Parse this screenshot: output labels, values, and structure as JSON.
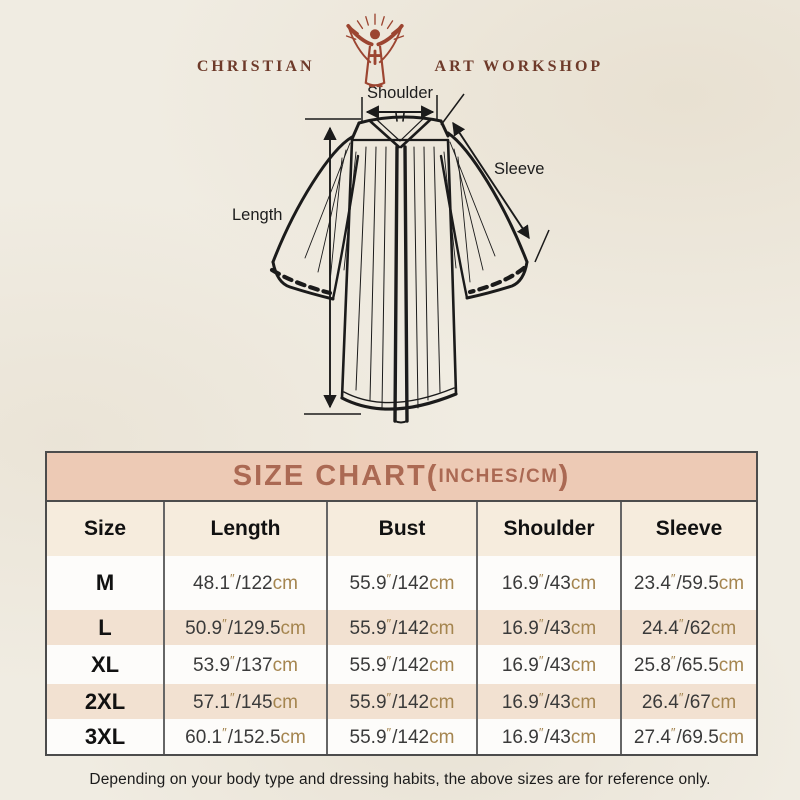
{
  "brand": {
    "left": "CHRISTIAN",
    "right": "ART WORKSHOP"
  },
  "diagram": {
    "shoulder_label": "Shoulder",
    "sleeve_label": "Sleeve",
    "length_label": "Length"
  },
  "size_chart": {
    "title_display": {
      "main": "SIZE CHART",
      "open": "(",
      "unit": "INCHES/CM",
      "close": ")"
    },
    "columns": [
      "Size",
      "Length",
      "Bust",
      "Shoulder",
      "Sleeve"
    ],
    "units": {
      "inch_mark": "″",
      "separator": "/",
      "cm_suffix": "cm"
    },
    "rows": [
      {
        "size": "M",
        "length": {
          "in": "48.1",
          "cm": "122"
        },
        "bust": {
          "in": "55.9",
          "cm": "142"
        },
        "shoulder": {
          "in": "16.9",
          "cm": "43"
        },
        "sleeve": {
          "in": "23.4",
          "cm": "59.5"
        }
      },
      {
        "size": "L",
        "length": {
          "in": "50.9",
          "cm": "129.5"
        },
        "bust": {
          "in": "55.9",
          "cm": "142"
        },
        "shoulder": {
          "in": "16.9",
          "cm": "43"
        },
        "sleeve": {
          "in": "24.4",
          "cm": "62"
        }
      },
      {
        "size": "XL",
        "length": {
          "in": "53.9",
          "cm": "137"
        },
        "bust": {
          "in": "55.9",
          "cm": "142"
        },
        "shoulder": {
          "in": "16.9",
          "cm": "43"
        },
        "sleeve": {
          "in": "25.8",
          "cm": "65.5"
        }
      },
      {
        "size": "2XL",
        "length": {
          "in": "57.1",
          "cm": "145"
        },
        "bust": {
          "in": "55.9",
          "cm": "142"
        },
        "shoulder": {
          "in": "16.9",
          "cm": "43"
        },
        "sleeve": {
          "in": "26.4",
          "cm": "67"
        }
      },
      {
        "size": "3XL",
        "length": {
          "in": "60.1",
          "cm": "152.5"
        },
        "bust": {
          "in": "55.9",
          "cm": "142"
        },
        "shoulder": {
          "in": "16.9",
          "cm": "43"
        },
        "sleeve": {
          "in": "27.4",
          "cm": "69.5"
        }
      }
    ]
  },
  "footer": {
    "note": "Depending on your body type and dressing habits, the above sizes are for reference only."
  },
  "colors": {
    "brand_red": "#9c4531",
    "brand_text": "#6e3a2a",
    "title_text": "#ab6953",
    "title_bg": "#edcab5",
    "column_header_bg": "#f6ecdd",
    "row_beige": "#f2e1d1",
    "unit_tan": "#a5854f",
    "line_dark": "#1b1b1b",
    "paper_bg": "#f0ece2"
  }
}
